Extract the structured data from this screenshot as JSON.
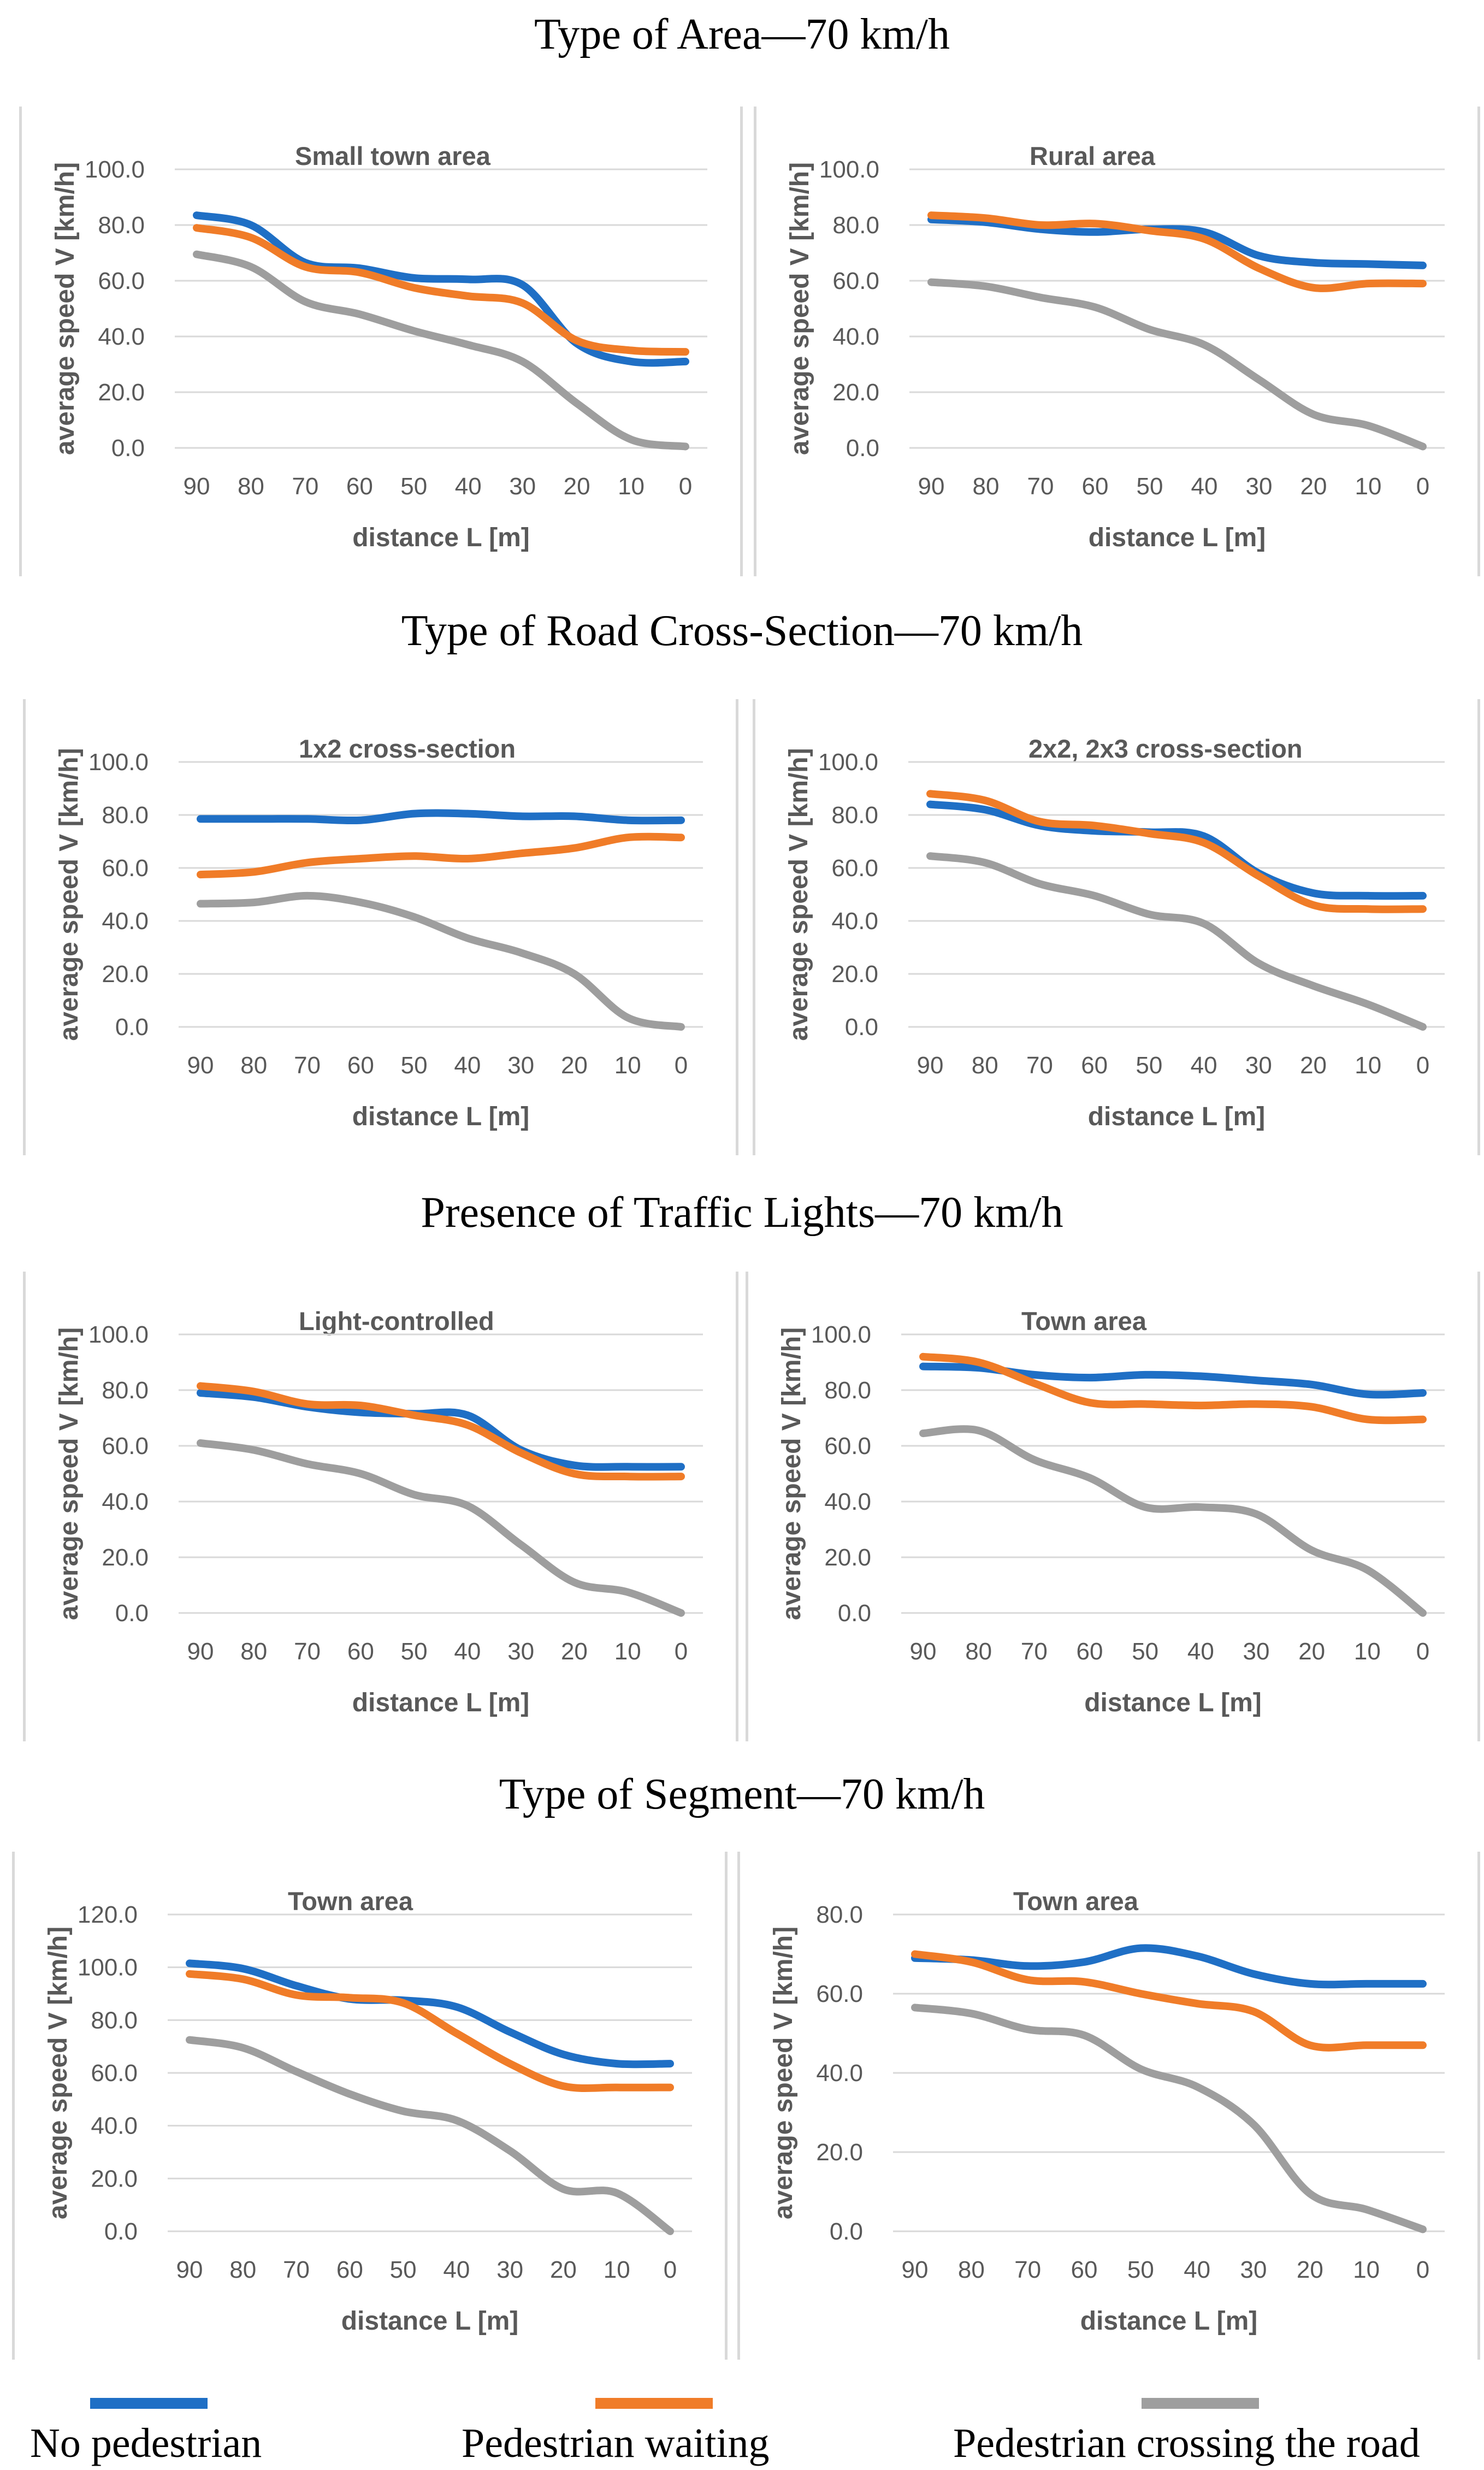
{
  "sections": [
    {
      "title": "Type of Area—70 km/h"
    },
    {
      "title": "Type of Road Cross-Section—70 km/h"
    },
    {
      "title": "Presence of Traffic Lights—70 km/h"
    },
    {
      "title": "Type of Segment—70 km/h"
    }
  ],
  "legend": [
    {
      "label": "No pedestrian",
      "color": "#1f6fc5"
    },
    {
      "label": "Pedestrian waiting",
      "color": "#f07c28"
    },
    {
      "label": "Pedestrian crossing the road",
      "color": "#9e9e9e"
    }
  ],
  "chart_data": [
    {
      "type": "line",
      "title": "Small town area",
      "xlabel": "distance L [m]",
      "ylabel": "average speed V [km/h]",
      "categories": [
        "90",
        "80",
        "70",
        "60",
        "50",
        "40",
        "30",
        "20",
        "10",
        "0"
      ],
      "ylim": [
        0,
        100
      ],
      "yticks": [
        "0.0",
        "20.0",
        "40.0",
        "60.0",
        "80.0",
        "100.0"
      ],
      "ytick_values": [
        0,
        20,
        40,
        60,
        80,
        100
      ],
      "series": [
        {
          "name": "No pedestrian",
          "values": [
            83.5,
            80,
            66.5,
            64.5,
            61,
            60.5,
            58.5,
            37.5,
            31,
            31
          ]
        },
        {
          "name": "Pedestrian waiting",
          "values": [
            79,
            75.5,
            65,
            63,
            57.5,
            54.5,
            52,
            38.5,
            35,
            34.5
          ]
        },
        {
          "name": "Pedestrian crossing the road",
          "values": [
            69.5,
            65,
            52.5,
            48,
            42,
            37,
            31,
            16,
            3,
            0.5
          ]
        }
      ]
    },
    {
      "type": "line",
      "title": "Rural area",
      "xlabel": "distance L [m]",
      "ylabel": "average speed V [km/h]",
      "categories": [
        "90",
        "80",
        "70",
        "60",
        "50",
        "40",
        "30",
        "20",
        "10",
        "0"
      ],
      "ylim": [
        0,
        100
      ],
      "yticks": [
        "0.0",
        "20.0",
        "40.0",
        "60.0",
        "80.0",
        "100.0"
      ],
      "ytick_values": [
        0,
        20,
        40,
        60,
        80,
        100
      ],
      "series": [
        {
          "name": "No pedestrian",
          "values": [
            82,
            81,
            78.5,
            77.5,
            78.5,
            77.5,
            69,
            66.5,
            66,
            65.5
          ]
        },
        {
          "name": "Pedestrian waiting",
          "values": [
            83.5,
            82.5,
            80,
            80.5,
            78,
            75,
            64.5,
            57.5,
            59,
            59
          ]
        },
        {
          "name": "Pedestrian crossing the road",
          "values": [
            59.5,
            58,
            54,
            50.5,
            42.5,
            37,
            24.5,
            12,
            8,
            0.5
          ]
        }
      ]
    },
    {
      "type": "line",
      "title": "1x2 cross-section",
      "xlabel": "distance L [m]",
      "ylabel": "average speed V [km/h]",
      "categories": [
        "90",
        "80",
        "70",
        "60",
        "50",
        "40",
        "30",
        "20",
        "10",
        "0"
      ],
      "ylim": [
        0,
        100
      ],
      "yticks": [
        "0.0",
        "20.0",
        "40.0",
        "60.0",
        "80.0",
        "100.0"
      ],
      "ytick_values": [
        0,
        20,
        40,
        60,
        80,
        100
      ],
      "series": [
        {
          "name": "No pedestrian",
          "values": [
            78.5,
            78.5,
            78.5,
            78,
            80.5,
            80.5,
            79.5,
            79.5,
            78,
            78
          ]
        },
        {
          "name": "Pedestrian waiting",
          "values": [
            57.5,
            58.5,
            62,
            63.5,
            64.5,
            63.5,
            65.5,
            67.5,
            71.5,
            71.5
          ]
        },
        {
          "name": "Pedestrian crossing the road",
          "values": [
            46.5,
            47,
            49.5,
            47,
            41.5,
            33.5,
            28,
            20,
            3.5,
            0
          ]
        }
      ]
    },
    {
      "type": "line",
      "title": "2x2, 2x3 cross-section",
      "xlabel": "distance L [m]",
      "ylabel": "average speed V [km/h]",
      "categories": [
        "90",
        "80",
        "70",
        "60",
        "50",
        "40",
        "30",
        "20",
        "10",
        "0"
      ],
      "ylim": [
        0,
        100
      ],
      "yticks": [
        "0.0",
        "20.0",
        "40.0",
        "60.0",
        "80.0",
        "100.0"
      ],
      "ytick_values": [
        0,
        20,
        40,
        60,
        80,
        100
      ],
      "series": [
        {
          "name": "No pedestrian",
          "values": [
            84,
            82,
            76,
            74,
            73.5,
            72,
            58,
            50.5,
            49.5,
            49.5
          ]
        },
        {
          "name": "Pedestrian waiting",
          "values": [
            88,
            85.5,
            77.5,
            76,
            73,
            69.5,
            57,
            46,
            44.5,
            44.5
          ]
        },
        {
          "name": "Pedestrian crossing the road",
          "values": [
            64.5,
            62,
            54,
            49.5,
            42.5,
            39,
            24,
            15.5,
            8.5,
            0
          ]
        }
      ]
    },
    {
      "type": "line",
      "title": "Light-controlled",
      "xlabel": "distance L [m]",
      "ylabel": "average speed V [km/h]",
      "categories": [
        "90",
        "80",
        "70",
        "60",
        "50",
        "40",
        "30",
        "20",
        "10",
        "0"
      ],
      "ylim": [
        0,
        100
      ],
      "yticks": [
        "0.0",
        "20.0",
        "40.0",
        "60.0",
        "80.0",
        "100.0"
      ],
      "ytick_values": [
        0,
        20,
        40,
        60,
        80,
        100
      ],
      "series": [
        {
          "name": "No pedestrian",
          "values": [
            79,
            77.5,
            74,
            72,
            71.5,
            71,
            58.5,
            53,
            52.5,
            52.5
          ]
        },
        {
          "name": "Pedestrian waiting",
          "values": [
            81.5,
            79.5,
            75,
            74.5,
            71,
            67.5,
            57.5,
            50,
            49,
            49
          ]
        },
        {
          "name": "Pedestrian crossing the road",
          "values": [
            61,
            58.5,
            53.5,
            50,
            42.5,
            38.5,
            24.5,
            11,
            7.5,
            0
          ]
        }
      ]
    },
    {
      "type": "line",
      "title": "Town area",
      "xlabel": "distance L [m]",
      "ylabel": "average speed V [km/h]",
      "categories": [
        "90",
        "80",
        "70",
        "60",
        "50",
        "40",
        "30",
        "20",
        "10",
        "0"
      ],
      "ylim": [
        0,
        100
      ],
      "yticks": [
        "0.0",
        "20.0",
        "40.0",
        "60.0",
        "80.0",
        "100.0"
      ],
      "ytick_values": [
        0,
        20,
        40,
        60,
        80,
        100
      ],
      "series": [
        {
          "name": "No pedestrian",
          "values": [
            88.5,
            88,
            85.5,
            84.5,
            85.5,
            85,
            83.5,
            82,
            78.5,
            79
          ]
        },
        {
          "name": "Pedestrian waiting",
          "values": [
            92,
            90,
            82.5,
            75.5,
            75,
            74.5,
            75,
            74,
            69.5,
            69.5
          ]
        },
        {
          "name": "Pedestrian crossing the road",
          "values": [
            64.5,
            65.5,
            55,
            48.5,
            38,
            38,
            35.5,
            22.5,
            15.5,
            0
          ]
        }
      ]
    },
    {
      "type": "line",
      "title": "Town area",
      "xlabel": "distance L [m]",
      "ylabel": "average speed V [km/h]",
      "categories": [
        "90",
        "80",
        "70",
        "60",
        "50",
        "40",
        "30",
        "20",
        "10",
        "0"
      ],
      "ylim": [
        0,
        120
      ],
      "yticks": [
        "0.0",
        "20.0",
        "40.0",
        "60.0",
        "80.0",
        "100.0",
        "120.0"
      ],
      "ytick_values": [
        0,
        20,
        40,
        60,
        80,
        100,
        120
      ],
      "series": [
        {
          "name": "No pedestrian",
          "values": [
            101.5,
            99.5,
            93,
            88,
            87.5,
            85,
            75.5,
            67,
            63.5,
            63.5
          ]
        },
        {
          "name": "Pedestrian waiting",
          "values": [
            97.5,
            95.5,
            89.5,
            88.5,
            86.5,
            75,
            63.5,
            55,
            54.5,
            54.5
          ]
        },
        {
          "name": "Pedestrian crossing the road",
          "values": [
            72.5,
            69.5,
            60.5,
            52,
            45.5,
            42,
            30.5,
            16,
            14.5,
            0
          ]
        }
      ]
    },
    {
      "type": "line",
      "title": "Town area",
      "xlabel": "distance L [m]",
      "ylabel": "average speed V [km/h]",
      "categories": [
        "90",
        "80",
        "70",
        "60",
        "50",
        "40",
        "30",
        "20",
        "10",
        "0"
      ],
      "ylim": [
        0,
        80
      ],
      "yticks": [
        "0.0",
        "20.0",
        "40.0",
        "60.0",
        "80.0"
      ],
      "ytick_values": [
        0,
        20,
        40,
        60,
        80
      ],
      "series": [
        {
          "name": "No pedestrian",
          "values": [
            69,
            68.5,
            67,
            68,
            71.5,
            69.5,
            65,
            62.5,
            62.5,
            62.5
          ]
        },
        {
          "name": "Pedestrian waiting",
          "values": [
            70,
            68,
            63.5,
            63,
            60,
            57.5,
            55.5,
            47,
            47,
            47
          ]
        },
        {
          "name": "Pedestrian crossing the road",
          "values": [
            56.5,
            55,
            51,
            49.5,
            41,
            36.5,
            27,
            9.5,
            5.5,
            0.5
          ]
        }
      ]
    }
  ]
}
